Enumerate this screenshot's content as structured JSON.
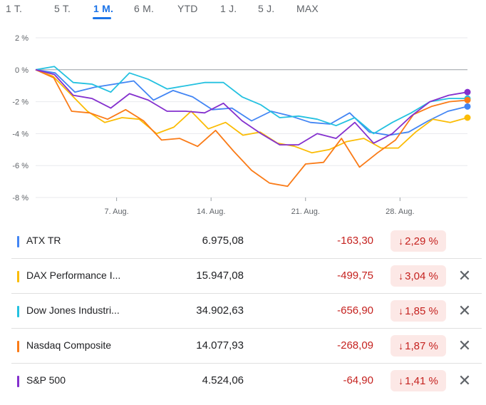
{
  "tabs": [
    {
      "label": "1 T."
    },
    {
      "label": "5 T."
    },
    {
      "label": "1 M."
    },
    {
      "label": "6 M."
    },
    {
      "label": "YTD"
    },
    {
      "label": "1 J."
    },
    {
      "label": "5 J."
    },
    {
      "label": "MAX"
    }
  ],
  "active_tab": "1 M.",
  "rows": [
    {
      "name": "ATX TR",
      "price": "6.975,08",
      "change": "-163,30",
      "pct": "2,29 %",
      "color": "#4285f4",
      "removable": false
    },
    {
      "name": "DAX Performance I...",
      "price": "15.947,08",
      "change": "-499,75",
      "pct": "3,04 %",
      "color": "#fbbc04",
      "removable": true
    },
    {
      "name": "Dow Jones Industri...",
      "price": "34.902,63",
      "change": "-656,90",
      "pct": "1,85 %",
      "color": "#24c1e0",
      "removable": true
    },
    {
      "name": "Nasdaq Composite",
      "price": "14.077,93",
      "change": "-268,09",
      "pct": "1,87 %",
      "color": "#fa7b17",
      "removable": true
    },
    {
      "name": "S&P 500",
      "price": "4.524,06",
      "change": "-64,90",
      "pct": "1,41 %",
      "color": "#8430ce",
      "removable": true
    }
  ],
  "icons": {
    "down_arrow": "arrow-down-icon",
    "close": "close-icon"
  },
  "chart_data": {
    "type": "line",
    "ylim": [
      -8,
      2
    ],
    "yticks": [
      2,
      0,
      -2,
      -4,
      -6,
      -8
    ],
    "ytick_labels": [
      "2 %",
      "0 %",
      "-2 %",
      "-4 %",
      "-6 %",
      "-8 %"
    ],
    "xtick_labels": [
      "7. Aug.",
      "14. Aug.",
      "21. Aug.",
      "28. Aug."
    ],
    "xtick_index": [
      6,
      13,
      20,
      27
    ],
    "n_points": 33,
    "grid": true,
    "series": [
      {
        "name": "ATX TR",
        "color": "#4285f4",
        "values": [
          0,
          -0.2,
          -1.4,
          -1.1,
          -0.9,
          -0.7,
          -1.9,
          -1.3,
          -1.7,
          -2.5,
          -2.4,
          -3.2,
          -2.6,
          -2.9,
          -3.3,
          -3.4,
          -2.7,
          -3.9,
          -4.1,
          -3.9,
          -3.2,
          -2.6,
          -2.3
        ]
      },
      {
        "name": "DAX Performance I...",
        "color": "#fbbc04",
        "values": [
          0,
          -0.4,
          -1.5,
          -2.6,
          -3.3,
          -3.0,
          -3.1,
          -4.0,
          -3.6,
          -2.6,
          -3.7,
          -3.3,
          -4.1,
          -3.9,
          -4.6,
          -4.8,
          -5.2,
          -5.0,
          -4.5,
          -4.3,
          -4.9,
          -4.9,
          -3.9,
          -3.1,
          -3.3,
          -3.0
        ]
      },
      {
        "name": "Dow Jones Industri...",
        "color": "#24c1e0",
        "values": [
          0,
          0.2,
          -0.8,
          -0.9,
          -1.4,
          -0.2,
          -0.6,
          -1.2,
          -1.0,
          -0.8,
          -0.8,
          -1.7,
          -2.2,
          -3.0,
          -2.9,
          -3.1,
          -3.5,
          -3.0,
          -4.0,
          -3.3,
          -2.7,
          -2.0,
          -1.8,
          -1.8
        ]
      },
      {
        "name": "Nasdaq Composite",
        "color": "#fa7b17",
        "values": [
          0,
          -0.5,
          -2.6,
          -2.7,
          -3.1,
          -2.5,
          -3.2,
          -4.4,
          -4.3,
          -4.8,
          -3.8,
          -5.1,
          -6.3,
          -7.1,
          -7.3,
          -5.9,
          -5.8,
          -4.3,
          -6.1,
          -5.2,
          -4.4,
          -2.8,
          -2.3,
          -2.0,
          -1.9
        ]
      },
      {
        "name": "S&P 500",
        "color": "#8430ce",
        "values": [
          0,
          -0.3,
          -1.6,
          -1.8,
          -2.4,
          -1.5,
          -1.9,
          -2.6,
          -2.6,
          -2.7,
          -2.1,
          -3.2,
          -4.0,
          -4.7,
          -4.7,
          -4.0,
          -4.3,
          -3.3,
          -4.6,
          -4.0,
          -2.9,
          -2.0,
          -1.6,
          -1.4
        ]
      }
    ]
  }
}
